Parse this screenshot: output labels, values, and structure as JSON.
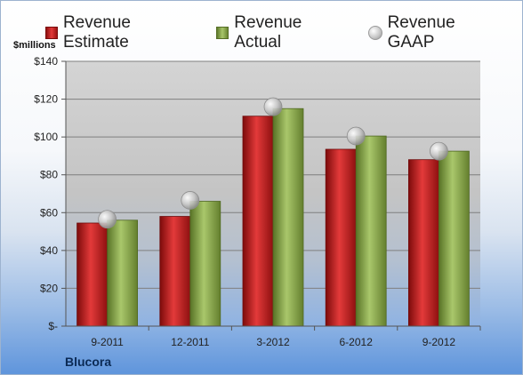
{
  "chart_data": {
    "type": "bar",
    "categories": [
      "9-2011",
      "12-2011",
      "3-2012",
      "6-2012",
      "9-2012"
    ],
    "series": [
      {
        "name": "Revenue Estimate",
        "kind": "bar",
        "color": "#c41e1e",
        "values": [
          54.5,
          58,
          111,
          93.5,
          88
        ]
      },
      {
        "name": "Revenue Actual",
        "kind": "bar",
        "color": "#8faf4c",
        "values": [
          56,
          66,
          115,
          100.5,
          92.5
        ]
      },
      {
        "name": "Revenue GAAP",
        "kind": "marker",
        "color": "#c0c0c0",
        "values": [
          56.5,
          66.5,
          116,
          100.5,
          92.5
        ]
      }
    ],
    "ylabel": "$millions",
    "ylim": [
      0,
      140
    ],
    "yticks": [
      0,
      20,
      40,
      60,
      80,
      100,
      120,
      140
    ],
    "ytick_labels": [
      "$-",
      "$20",
      "$40",
      "$60",
      "$80",
      "$100",
      "$120",
      "$140"
    ],
    "grid": true,
    "legend": "top"
  },
  "brand": "Blucora"
}
